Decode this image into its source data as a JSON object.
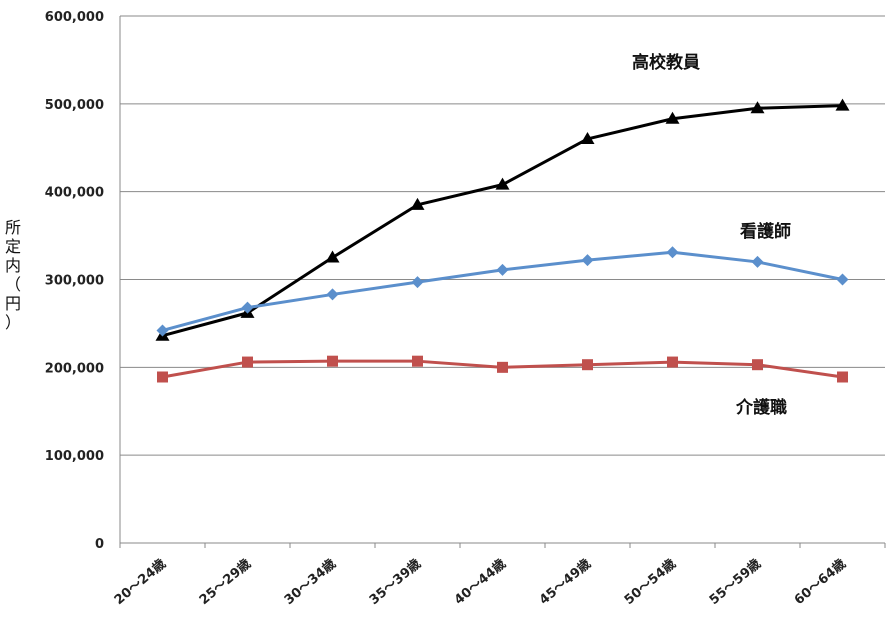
{
  "chart_data": {
    "type": "line",
    "title": "",
    "xlabel": "",
    "ylabel": "所定内（円）",
    "categories": [
      "20～24歳",
      "25～29歳",
      "30～34歳",
      "35～39歳",
      "40～44歳",
      "45～49歳",
      "50～54歳",
      "55～59歳",
      "60～64歳"
    ],
    "y_ticks": [
      "0",
      "100,000",
      "200,000",
      "300,000",
      "400,000",
      "500,000",
      "600,000"
    ],
    "ylim": [
      0,
      600000
    ],
    "grid": "horizontal",
    "legend": "none",
    "series": [
      {
        "name": "高校教員",
        "color": "#000000",
        "marker": "triangle",
        "values": [
          236000,
          262000,
          325000,
          385000,
          408000,
          460000,
          483000,
          495000,
          498000
        ]
      },
      {
        "name": "看護師",
        "color": "#5b8fcc",
        "marker": "diamond",
        "values": [
          242000,
          268000,
          283000,
          297000,
          311000,
          322000,
          331000,
          320000,
          300000
        ]
      },
      {
        "name": "介護職",
        "color": "#c0504d",
        "marker": "square",
        "values": [
          189000,
          206000,
          207000,
          207000,
          200000,
          203000,
          206000,
          203000,
          189000
        ]
      }
    ]
  }
}
